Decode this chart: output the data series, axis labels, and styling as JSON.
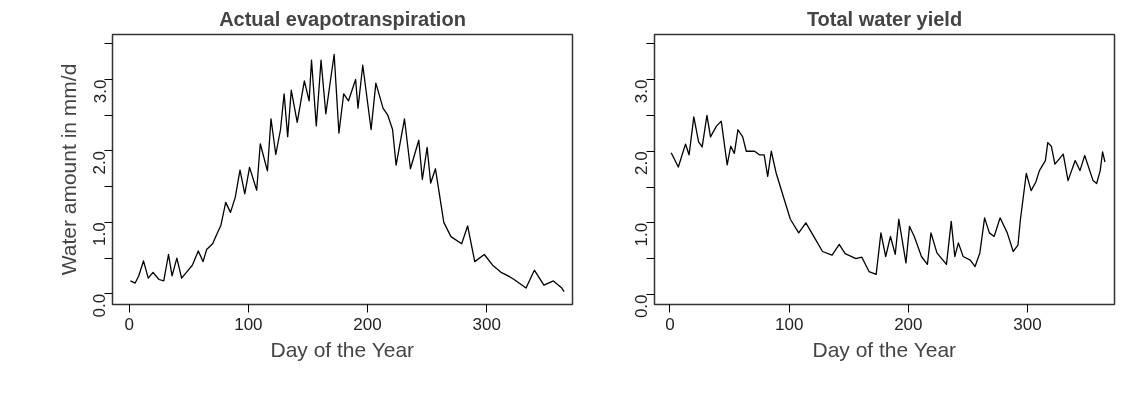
{
  "chart_data": [
    {
      "type": "line",
      "title": "Actual evapotranspiration",
      "xlabel": "Day of the Year",
      "ylabel": "Water amount in mm/d",
      "color": "#000000",
      "grid": false,
      "marker": "none",
      "line_style": "solid",
      "xlim": [
        -14,
        372
      ],
      "ylim": [
        -0.15,
        3.63
      ],
      "xticks": [
        0,
        100,
        200,
        300
      ],
      "yticks": [
        {
          "value": 0,
          "label": "0.0"
        },
        {
          "value": 0.5,
          "label": null
        },
        {
          "value": 1,
          "label": "1.0"
        },
        {
          "value": 1.5,
          "label": null
        },
        {
          "value": 2,
          "label": "2.0"
        },
        {
          "value": 2.5,
          "label": null
        },
        {
          "value": 3,
          "label": "3.0"
        },
        {
          "value": 3.5,
          "label": null
        }
      ],
      "x": [
        1,
        5,
        8,
        12,
        16,
        20,
        25,
        29,
        33,
        36,
        40,
        44,
        48,
        53,
        58,
        62,
        65,
        70,
        74,
        77,
        81,
        85,
        89,
        93,
        97,
        101,
        107,
        110,
        116,
        119,
        123,
        127,
        130,
        133,
        136,
        141,
        147,
        151,
        153,
        157,
        161,
        165,
        169,
        172,
        176,
        180,
        184,
        190,
        192,
        196,
        203,
        207,
        213,
        217,
        221,
        224,
        231,
        236,
        243,
        246,
        250,
        253,
        257,
        264,
        270,
        279,
        284,
        290,
        298,
        305,
        312,
        318,
        323,
        333,
        340,
        348,
        356,
        363,
        365
      ],
      "values": [
        0.18,
        0.15,
        0.25,
        0.46,
        0.22,
        0.3,
        0.2,
        0.18,
        0.55,
        0.25,
        0.5,
        0.22,
        0.3,
        0.4,
        0.6,
        0.45,
        0.62,
        0.7,
        0.85,
        0.96,
        1.28,
        1.14,
        1.35,
        1.73,
        1.4,
        1.77,
        1.45,
        2.1,
        1.72,
        2.45,
        1.95,
        2.3,
        2.8,
        2.2,
        2.85,
        2.4,
        2.98,
        2.7,
        3.27,
        2.35,
        3.27,
        2.52,
        3.0,
        3.35,
        2.25,
        2.8,
        2.7,
        3.0,
        2.6,
        3.2,
        2.3,
        2.95,
        2.6,
        2.5,
        2.3,
        1.8,
        2.45,
        1.75,
        2.15,
        1.6,
        2.05,
        1.55,
        1.75,
        1.0,
        0.8,
        0.7,
        0.95,
        0.45,
        0.55,
        0.4,
        0.3,
        0.25,
        0.2,
        0.08,
        0.33,
        0.12,
        0.18,
        0.08,
        0.03
      ]
    },
    {
      "type": "line",
      "title": "Total water yield",
      "xlabel": "Day of the Year",
      "color": "#000000",
      "grid": false,
      "marker": "none",
      "line_style": "solid",
      "xlim": [
        -13,
        373
      ],
      "ylim": [
        -0.14,
        3.63
      ],
      "xticks": [
        0,
        100,
        200,
        300
      ],
      "yticks": [
        {
          "value": 0,
          "label": "0.0"
        },
        {
          "value": 0.5,
          "label": null
        },
        {
          "value": 1,
          "label": "1.0"
        },
        {
          "value": 1.5,
          "label": null
        },
        {
          "value": 2,
          "label": "2.0"
        },
        {
          "value": 2.5,
          "label": null
        },
        {
          "value": 3,
          "label": "3.0"
        },
        {
          "value": 3.5,
          "label": null
        }
      ],
      "x": [
        1,
        7,
        13,
        16,
        20,
        24,
        27,
        31,
        34,
        39,
        43,
        48,
        51,
        54,
        57,
        61,
        64,
        71,
        75,
        79,
        82,
        85,
        89,
        96,
        101,
        108,
        114,
        121,
        128,
        136,
        142,
        147,
        156,
        161,
        167,
        173,
        177,
        181,
        185,
        189,
        192,
        198,
        201,
        205,
        211,
        216,
        219,
        224,
        232,
        236,
        239,
        242,
        246,
        252,
        256,
        260,
        264,
        268,
        272,
        277,
        283,
        288,
        292,
        294,
        299,
        303,
        307,
        310,
        315,
        317,
        320,
        323,
        330,
        334,
        340,
        344,
        348,
        355,
        358,
        361,
        363,
        365
      ],
      "values": [
        1.98,
        1.78,
        2.1,
        1.95,
        2.48,
        2.13,
        2.06,
        2.5,
        2.2,
        2.35,
        2.42,
        1.81,
        2.07,
        1.97,
        2.3,
        2.2,
        2.0,
        2.0,
        1.95,
        1.95,
        1.65,
        2.0,
        1.7,
        1.32,
        1.05,
        0.86,
        1.0,
        0.8,
        0.6,
        0.55,
        0.7,
        0.57,
        0.5,
        0.52,
        0.32,
        0.28,
        0.86,
        0.53,
        0.81,
        0.56,
        1.05,
        0.44,
        0.95,
        0.81,
        0.53,
        0.42,
        0.86,
        0.58,
        0.42,
        1.02,
        0.53,
        0.72,
        0.53,
        0.48,
        0.39,
        0.58,
        1.07,
        0.86,
        0.81,
        1.07,
        0.86,
        0.6,
        0.69,
        1.04,
        1.69,
        1.45,
        1.57,
        1.73,
        1.87,
        2.12,
        2.07,
        1.82,
        1.96,
        1.59,
        1.87,
        1.73,
        1.94,
        1.59,
        1.55,
        1.73,
        1.99,
        1.85
      ]
    }
  ]
}
